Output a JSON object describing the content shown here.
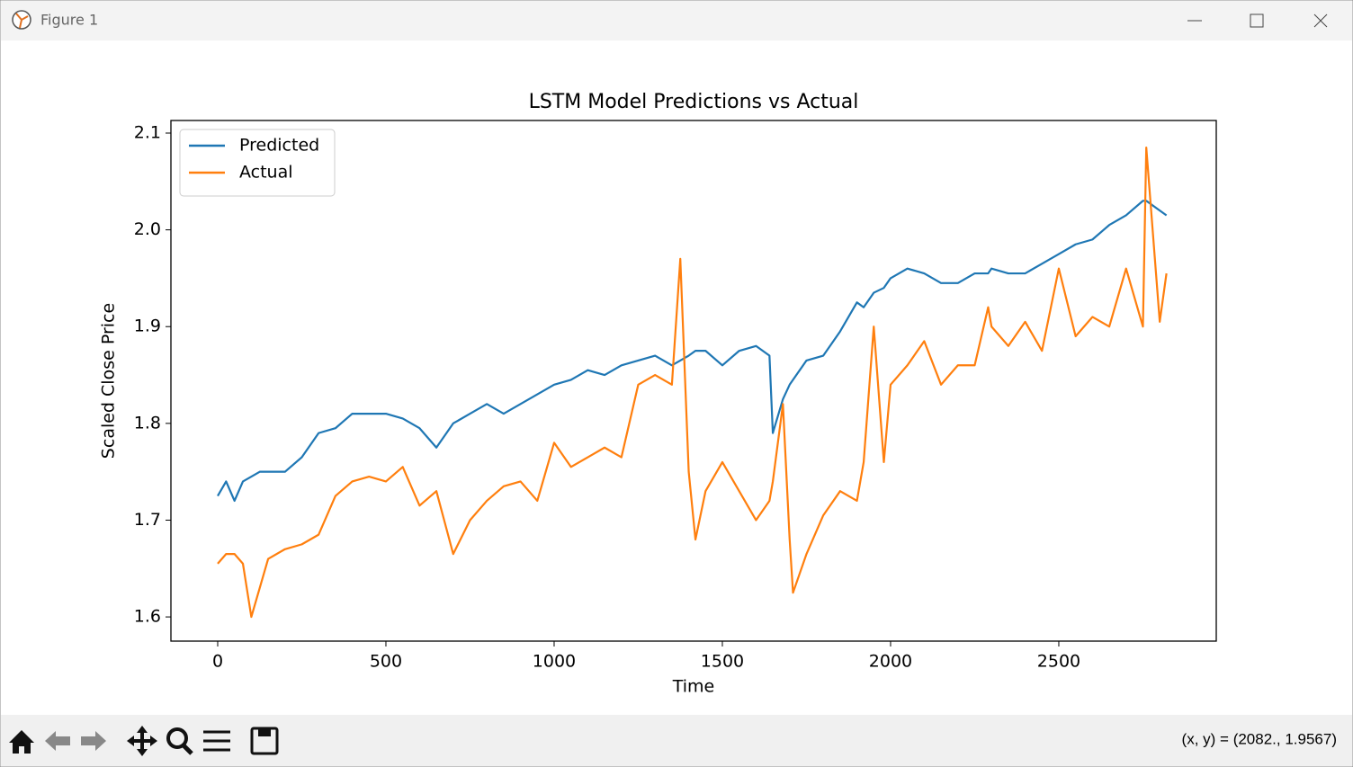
{
  "window": {
    "title": "Figure 1"
  },
  "status": "(x, y) = (2082., 1.9567)",
  "chart_data": {
    "type": "line",
    "title": "LSTM Model Predictions vs Actual",
    "x_label": "Time",
    "y_label": "Scaled Close Price",
    "x": [
      0,
      25,
      50,
      75,
      100,
      125,
      150,
      200,
      250,
      300,
      350,
      400,
      450,
      500,
      550,
      600,
      650,
      700,
      750,
      800,
      850,
      900,
      950,
      1000,
      1050,
      1100,
      1150,
      1200,
      1250,
      1300,
      1350,
      1375,
      1400,
      1420,
      1450,
      1500,
      1550,
      1600,
      1640,
      1650,
      1680,
      1700,
      1710,
      1750,
      1800,
      1850,
      1900,
      1920,
      1950,
      1980,
      2000,
      2050,
      2100,
      2150,
      2200,
      2250,
      2290,
      2300,
      2350,
      2400,
      2450,
      2500,
      2550,
      2600,
      2650,
      2700,
      2750,
      2760,
      2800,
      2820
    ],
    "series": [
      {
        "name": "Predicted",
        "color": "#1f77b4",
        "values": [
          1.725,
          1.74,
          1.72,
          1.74,
          1.745,
          1.75,
          1.75,
          1.75,
          1.765,
          1.79,
          1.795,
          1.81,
          1.81,
          1.81,
          1.805,
          1.795,
          1.775,
          1.8,
          1.81,
          1.82,
          1.81,
          1.82,
          1.83,
          1.84,
          1.845,
          1.855,
          1.85,
          1.86,
          1.865,
          1.87,
          1.86,
          1.865,
          1.87,
          1.875,
          1.875,
          1.86,
          1.875,
          1.88,
          1.87,
          1.79,
          1.825,
          1.84,
          1.845,
          1.865,
          1.87,
          1.895,
          1.925,
          1.92,
          1.935,
          1.94,
          1.95,
          1.96,
          1.955,
          1.945,
          1.945,
          1.955,
          1.955,
          1.96,
          1.955,
          1.955,
          1.965,
          1.975,
          1.985,
          1.99,
          2.005,
          2.015,
          2.03,
          2.03,
          2.02,
          2.015
        ]
      },
      {
        "name": "Actual",
        "color": "#ff7f0e",
        "values": [
          1.655,
          1.665,
          1.665,
          1.655,
          1.6,
          1.63,
          1.66,
          1.67,
          1.675,
          1.685,
          1.725,
          1.74,
          1.745,
          1.74,
          1.755,
          1.715,
          1.73,
          1.665,
          1.7,
          1.72,
          1.735,
          1.74,
          1.72,
          1.78,
          1.755,
          1.765,
          1.775,
          1.765,
          1.84,
          1.85,
          1.84,
          1.97,
          1.75,
          1.68,
          1.73,
          1.76,
          1.73,
          1.7,
          1.72,
          1.74,
          1.82,
          1.68,
          1.625,
          1.665,
          1.705,
          1.73,
          1.72,
          1.76,
          1.9,
          1.76,
          1.84,
          1.86,
          1.885,
          1.84,
          1.86,
          1.86,
          1.92,
          1.9,
          1.88,
          1.905,
          1.875,
          1.96,
          1.89,
          1.91,
          1.9,
          1.96,
          1.9,
          2.085,
          1.905,
          1.955
        ]
      }
    ],
    "xlim": [
      -139,
      2968
    ],
    "ylim": [
      1.575,
      2.113
    ],
    "xticks": [
      0,
      500,
      1000,
      1500,
      2000,
      2500
    ],
    "yticks": [
      1.6,
      1.7,
      1.8,
      1.9,
      {
        "value": 2.0,
        "label": "2.0"
      },
      2.1
    ],
    "grid": false,
    "legend": "upper left"
  }
}
